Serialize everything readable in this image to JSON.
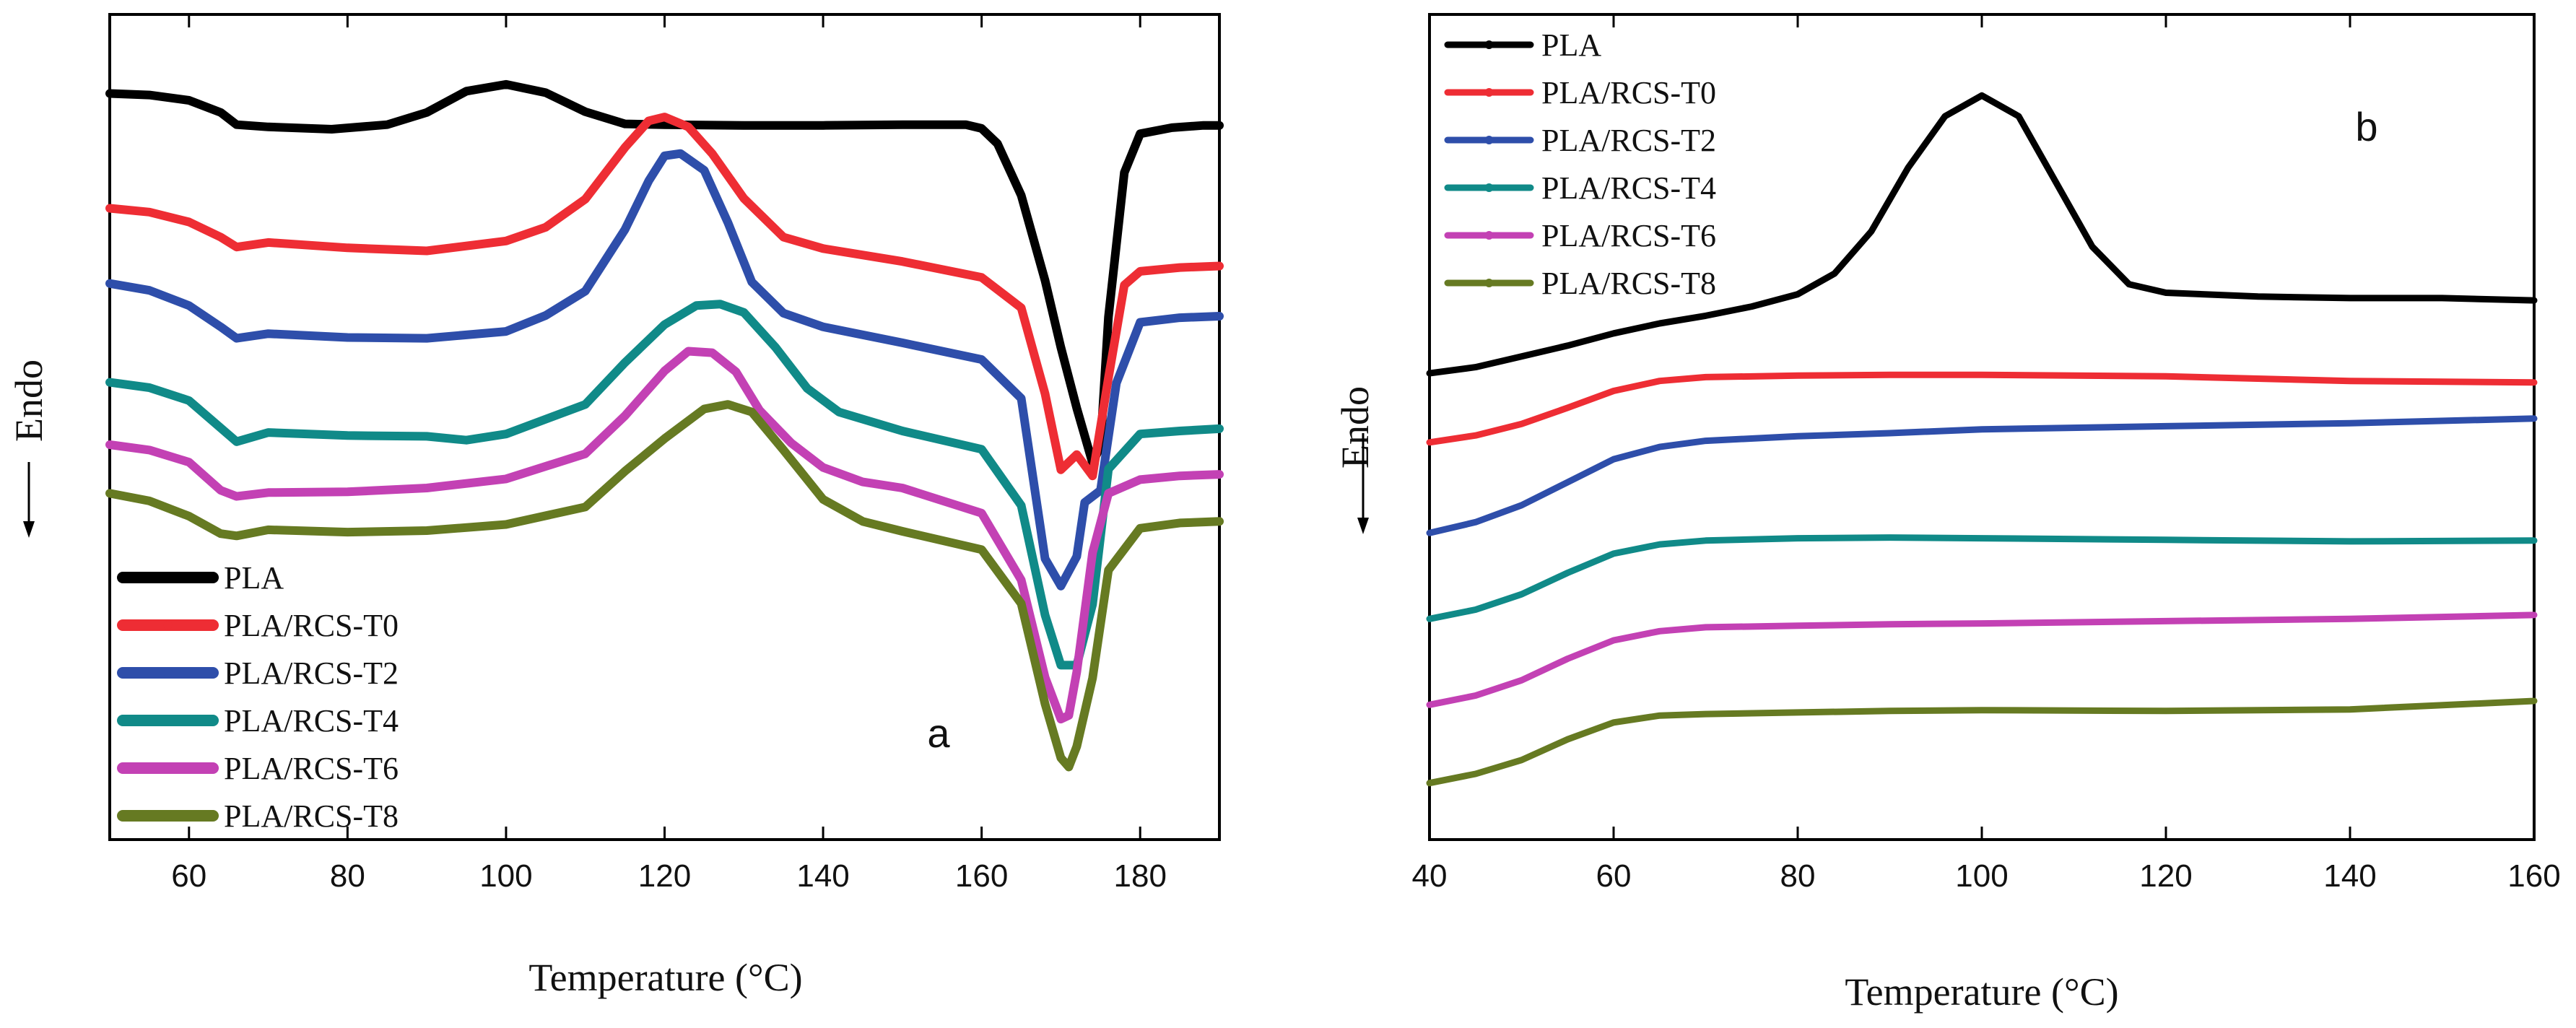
{
  "colors": {
    "PLA": "#000000",
    "PLA/RCS-T0": "#ee2d34",
    "PLA/RCS-T2": "#2e4eaa",
    "PLA/RCS-T4": "#108a88",
    "PLA/RCS-T6": "#c341b4",
    "PLA/RCS-T8": "#667a22"
  },
  "chart_data": [
    {
      "type": "line",
      "panel_label": "a",
      "xlabel": "Temperature",
      "xunit": "°C",
      "ylabel": "Endo",
      "xlim": [
        50,
        190
      ],
      "ylim": [
        0,
        1
      ],
      "xticks": [
        60,
        80,
        100,
        120,
        140,
        160,
        180
      ],
      "legend_position": "bottom-left",
      "legend": [
        "PLA",
        "PLA/RCS-T0",
        "PLA/RCS-T2",
        "PLA/RCS-T4",
        "PLA/RCS-T6",
        "PLA/RCS-T8"
      ],
      "series": [
        {
          "name": "PLA",
          "x": [
            50,
            55,
            60,
            64,
            66,
            70,
            78,
            85,
            90,
            95,
            100,
            105,
            110,
            115,
            120,
            130,
            140,
            150,
            158,
            160,
            162,
            165,
            168,
            170,
            172,
            174,
            175,
            176,
            178,
            180,
            184,
            188,
            190
          ],
          "y": [
            0.934,
            0.932,
            0.925,
            0.909,
            0.893,
            0.89,
            0.887,
            0.893,
            0.909,
            0.937,
            0.946,
            0.935,
            0.91,
            0.894,
            0.893,
            0.892,
            0.892,
            0.893,
            0.893,
            0.888,
            0.868,
            0.8,
            0.688,
            0.6,
            0.52,
            0.448,
            0.47,
            0.64,
            0.83,
            0.881,
            0.889,
            0.892,
            0.892
          ]
        },
        {
          "name": "PLA/RCS-T0",
          "x": [
            50,
            55,
            60,
            64,
            66,
            70,
            80,
            90,
            100,
            105,
            110,
            115,
            118,
            120,
            123,
            126,
            130,
            135,
            140,
            150,
            160,
            165,
            168,
            170,
            172,
            174,
            176,
            178,
            180,
            185,
            190
          ],
          "y": [
            0.783,
            0.778,
            0.765,
            0.745,
            0.732,
            0.738,
            0.731,
            0.727,
            0.74,
            0.758,
            0.795,
            0.863,
            0.898,
            0.903,
            0.89,
            0.855,
            0.796,
            0.745,
            0.73,
            0.713,
            0.692,
            0.652,
            0.539,
            0.439,
            0.459,
            0.431,
            0.56,
            0.682,
            0.7,
            0.705,
            0.707
          ]
        },
        {
          "name": "PLA/RCS-T2",
          "x": [
            50,
            55,
            60,
            64,
            66,
            70,
            80,
            90,
            100,
            105,
            110,
            115,
            118,
            120,
            122,
            125,
            128,
            131,
            135,
            140,
            150,
            160,
            165,
            168,
            170,
            172,
            173,
            175,
            177,
            180,
            185,
            190
          ],
          "y": [
            0.684,
            0.675,
            0.655,
            0.627,
            0.612,
            0.618,
            0.613,
            0.612,
            0.621,
            0.642,
            0.674,
            0.755,
            0.819,
            0.852,
            0.855,
            0.833,
            0.764,
            0.686,
            0.645,
            0.627,
            0.606,
            0.584,
            0.533,
            0.322,
            0.286,
            0.325,
            0.396,
            0.412,
            0.553,
            0.633,
            0.639,
            0.641
          ]
        },
        {
          "name": "PLA/RCS-T4",
          "x": [
            50,
            55,
            60,
            64,
            66,
            70,
            80,
            90,
            95,
            100,
            110,
            115,
            120,
            124,
            127,
            130,
            134,
            138,
            142,
            150,
            160,
            165,
            168,
            170,
            172,
            174,
            176,
            180,
            185,
            190
          ],
          "y": [
            0.554,
            0.547,
            0.53,
            0.494,
            0.476,
            0.488,
            0.484,
            0.483,
            0.478,
            0.486,
            0.525,
            0.58,
            0.63,
            0.655,
            0.657,
            0.646,
            0.6,
            0.546,
            0.515,
            0.49,
            0.466,
            0.392,
            0.248,
            0.182,
            0.182,
            0.262,
            0.44,
            0.486,
            0.49,
            0.493
          ]
        },
        {
          "name": "PLA/RCS-T6",
          "x": [
            50,
            55,
            60,
            64,
            66,
            70,
            80,
            90,
            100,
            110,
            115,
            120,
            123,
            126,
            129,
            132,
            136,
            140,
            145,
            150,
            160,
            165,
            168,
            170,
            171,
            172,
            174,
            176,
            180,
            185,
            190
          ],
          "y": [
            0.472,
            0.465,
            0.449,
            0.412,
            0.404,
            0.409,
            0.41,
            0.415,
            0.427,
            0.46,
            0.51,
            0.569,
            0.595,
            0.593,
            0.568,
            0.517,
            0.474,
            0.442,
            0.423,
            0.415,
            0.382,
            0.294,
            0.166,
            0.111,
            0.116,
            0.173,
            0.33,
            0.408,
            0.426,
            0.431,
            0.433
          ]
        },
        {
          "name": "PLA/RCS-T8",
          "x": [
            50,
            55,
            60,
            64,
            66,
            70,
            80,
            90,
            100,
            110,
            115,
            120,
            125,
            128,
            131,
            135,
            140,
            145,
            150,
            160,
            165,
            168,
            170,
            171,
            172,
            174,
            176,
            180,
            185,
            190
          ],
          "y": [
            0.408,
            0.398,
            0.378,
            0.355,
            0.352,
            0.36,
            0.357,
            0.359,
            0.367,
            0.39,
            0.437,
            0.48,
            0.519,
            0.525,
            0.515,
            0.465,
            0.4,
            0.371,
            0.358,
            0.334,
            0.263,
            0.131,
            0.06,
            0.048,
            0.075,
            0.165,
            0.307,
            0.362,
            0.369,
            0.371
          ]
        }
      ]
    },
    {
      "type": "line",
      "panel_label": "b",
      "xlabel": "Temperature",
      "xunit": "°C",
      "ylabel": "Endo",
      "xlim": [
        40,
        160
      ],
      "ylim": [
        0,
        1
      ],
      "xticks": [
        40,
        60,
        80,
        100,
        120,
        140,
        160
      ],
      "legend_position": "top-left",
      "legend": [
        "PLA",
        "PLA/RCS-T0",
        "PLA/RCS-T2",
        "PLA/RCS-T4",
        "PLA/RCS-T6",
        "PLA/RCS-T8"
      ],
      "series": [
        {
          "name": "PLA",
          "x": [
            40,
            45,
            50,
            55,
            60,
            65,
            70,
            75,
            80,
            84,
            88,
            92,
            96,
            100,
            104,
            108,
            112,
            116,
            120,
            130,
            140,
            150,
            160
          ],
          "y": [
            0.57,
            0.578,
            0.592,
            0.606,
            0.622,
            0.635,
            0.645,
            0.657,
            0.673,
            0.7,
            0.755,
            0.838,
            0.905,
            0.932,
            0.905,
            0.82,
            0.735,
            0.686,
            0.675,
            0.67,
            0.668,
            0.668,
            0.665
          ]
        },
        {
          "name": "PLA/RCS-T0",
          "x": [
            40,
            45,
            50,
            55,
            60,
            65,
            70,
            80,
            90,
            100,
            120,
            140,
            160
          ],
          "y": [
            0.48,
            0.489,
            0.504,
            0.525,
            0.547,
            0.56,
            0.565,
            0.567,
            0.568,
            0.568,
            0.566,
            0.56,
            0.558
          ]
        },
        {
          "name": "PLA/RCS-T2",
          "x": [
            40,
            45,
            50,
            55,
            60,
            65,
            70,
            80,
            90,
            100,
            120,
            140,
            160
          ],
          "y": [
            0.362,
            0.376,
            0.398,
            0.428,
            0.458,
            0.474,
            0.482,
            0.488,
            0.492,
            0.497,
            0.501,
            0.505,
            0.511
          ]
        },
        {
          "name": "PLA/RCS-T4",
          "x": [
            40,
            45,
            50,
            55,
            60,
            65,
            70,
            80,
            90,
            100,
            120,
            140,
            160
          ],
          "y": [
            0.25,
            0.262,
            0.282,
            0.31,
            0.335,
            0.347,
            0.352,
            0.355,
            0.356,
            0.355,
            0.353,
            0.351,
            0.352
          ]
        },
        {
          "name": "PLA/RCS-T6",
          "x": [
            40,
            45,
            50,
            55,
            60,
            65,
            70,
            80,
            90,
            100,
            120,
            140,
            160
          ],
          "y": [
            0.138,
            0.15,
            0.17,
            0.198,
            0.222,
            0.234,
            0.239,
            0.241,
            0.243,
            0.244,
            0.247,
            0.25,
            0.255
          ]
        },
        {
          "name": "PLA/RCS-T8",
          "x": [
            40,
            45,
            50,
            55,
            60,
            65,
            70,
            80,
            90,
            100,
            120,
            140,
            160
          ],
          "y": [
            0.036,
            0.048,
            0.066,
            0.093,
            0.115,
            0.124,
            0.126,
            0.128,
            0.13,
            0.131,
            0.13,
            0.132,
            0.143
          ]
        }
      ]
    }
  ]
}
